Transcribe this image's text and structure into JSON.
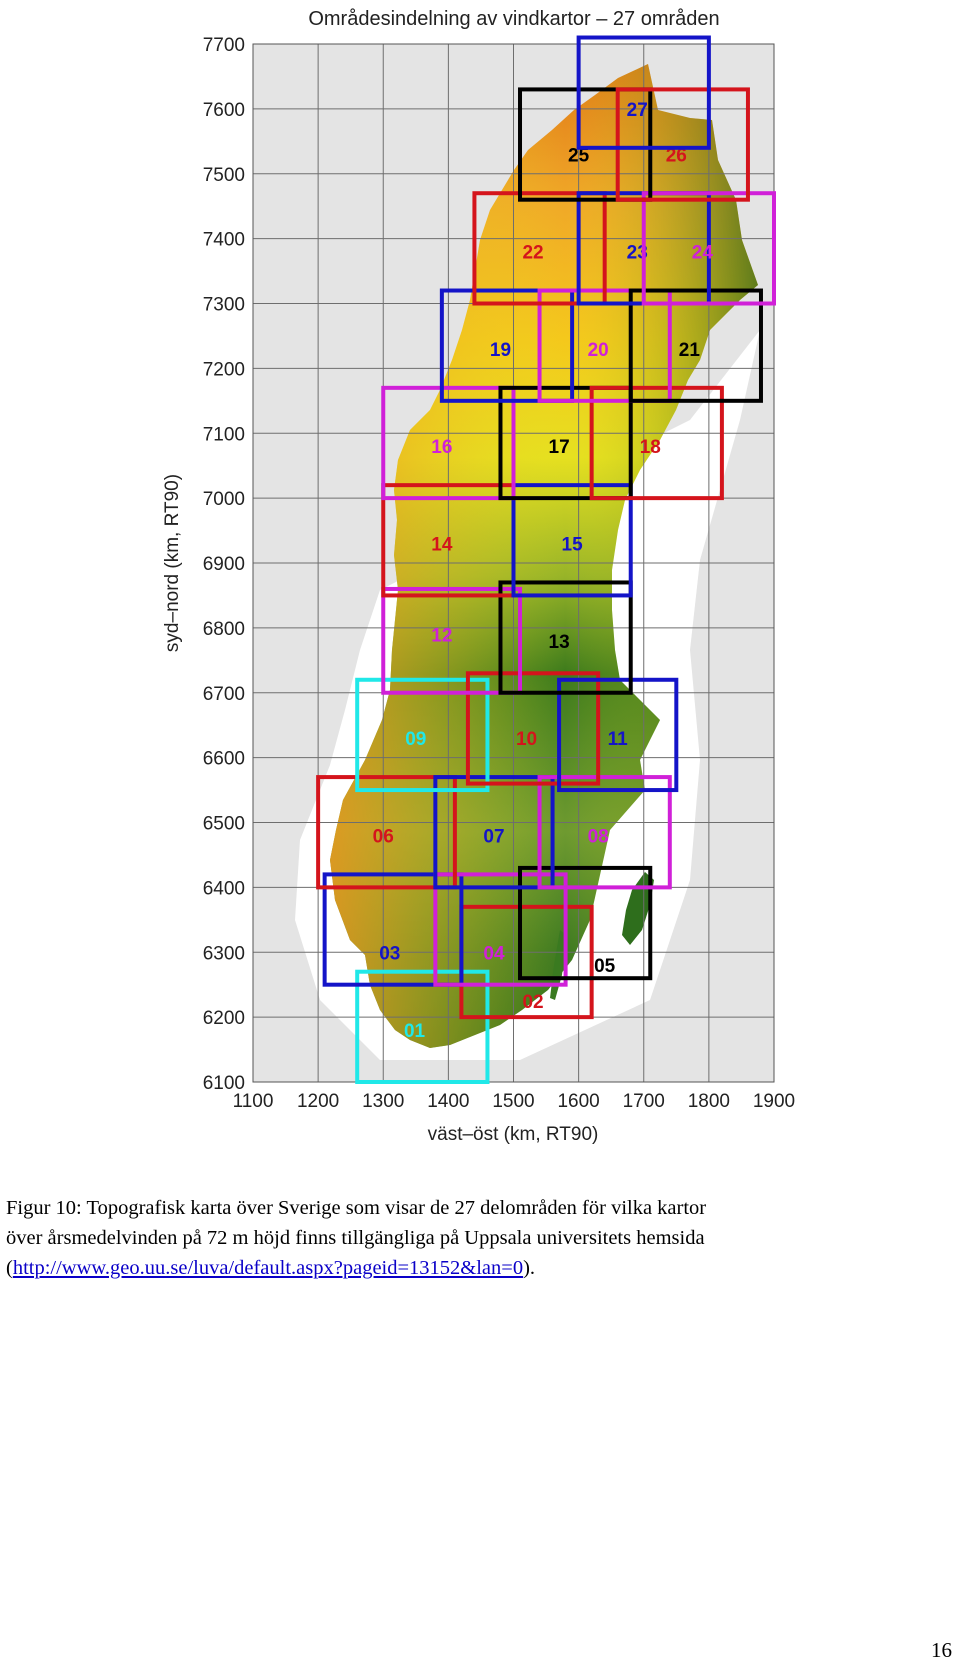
{
  "figure": {
    "title": "Områdesindelning av vindkartor – 27 områden",
    "xlabel": "väst–öst (km, RT90)",
    "ylabel": "syd–nord (km, RT90)"
  },
  "chart_data": {
    "type": "map",
    "title": "Områdesindelning av vindkartor – 27 områden",
    "xlabel": "väst–öst (km, RT90)",
    "ylabel": "syd–nord (km, RT90)",
    "xlim": [
      1100,
      1900
    ],
    "ylim": [
      6100,
      7700
    ],
    "xticks": [
      1100,
      1200,
      1300,
      1400,
      1500,
      1600,
      1700,
      1800,
      1900
    ],
    "yticks": [
      6100,
      6200,
      6300,
      6400,
      6500,
      6600,
      6700,
      6800,
      6900,
      7000,
      7100,
      7200,
      7300,
      7400,
      7500,
      7600,
      7700
    ],
    "grid": true,
    "colors": {
      "black": "#000000",
      "red": "#d4141c",
      "blue": "#1414c8",
      "magenta": "#d020d8",
      "cyan": "#20e8e8"
    },
    "regions": [
      {
        "label": "01",
        "color": "cyan",
        "x": [
          1260,
          1460
        ],
        "y": [
          6100,
          6270
        ],
        "label_at": [
          1348,
          6180
        ]
      },
      {
        "label": "02",
        "color": "red",
        "x": [
          1420,
          1620
        ],
        "y": [
          6200,
          6370
        ],
        "label_at": [
          1530,
          6225
        ]
      },
      {
        "label": "03",
        "color": "blue",
        "x": [
          1210,
          1420
        ],
        "y": [
          6250,
          6420
        ],
        "label_at": [
          1310,
          6300
        ]
      },
      {
        "label": "04",
        "color": "magenta",
        "x": [
          1380,
          1580
        ],
        "y": [
          6250,
          6420
        ],
        "label_at": [
          1470,
          6300
        ]
      },
      {
        "label": "05",
        "color": "black",
        "x": [
          1510,
          1710
        ],
        "y": [
          6260,
          6430
        ],
        "label_at": [
          1640,
          6280
        ]
      },
      {
        "label": "06",
        "color": "red",
        "x": [
          1200,
          1410
        ],
        "y": [
          6400,
          6570
        ],
        "label_at": [
          1300,
          6480
        ]
      },
      {
        "label": "07",
        "color": "blue",
        "x": [
          1380,
          1560
        ],
        "y": [
          6400,
          6570
        ],
        "label_at": [
          1470,
          6480
        ]
      },
      {
        "label": "08",
        "color": "magenta",
        "x": [
          1540,
          1740
        ],
        "y": [
          6400,
          6570
        ],
        "label_at": [
          1630,
          6480
        ]
      },
      {
        "label": "09",
        "color": "cyan",
        "x": [
          1260,
          1460
        ],
        "y": [
          6550,
          6720
        ],
        "label_at": [
          1350,
          6630
        ]
      },
      {
        "label": "10",
        "color": "red",
        "x": [
          1430,
          1630
        ],
        "y": [
          6560,
          6730
        ],
        "label_at": [
          1520,
          6630
        ]
      },
      {
        "label": "11",
        "color": "blue",
        "x": [
          1570,
          1750
        ],
        "y": [
          6550,
          6720
        ],
        "label_at": [
          1660,
          6630
        ]
      },
      {
        "label": "12",
        "color": "magenta",
        "x": [
          1300,
          1510
        ],
        "y": [
          6700,
          6860
        ],
        "label_at": [
          1390,
          6790
        ]
      },
      {
        "label": "13",
        "color": "black",
        "x": [
          1480,
          1680
        ],
        "y": [
          6700,
          6870
        ],
        "label_at": [
          1570,
          6780
        ]
      },
      {
        "label": "14",
        "color": "red",
        "x": [
          1300,
          1500
        ],
        "y": [
          6850,
          7020
        ],
        "label_at": [
          1390,
          6930
        ]
      },
      {
        "label": "15",
        "color": "blue",
        "x": [
          1500,
          1680
        ],
        "y": [
          6850,
          7020
        ],
        "label_at": [
          1590,
          6930
        ]
      },
      {
        "label": "16",
        "color": "magenta",
        "x": [
          1300,
          1500
        ],
        "y": [
          7000,
          7170
        ],
        "label_at": [
          1390,
          7080
        ]
      },
      {
        "label": "17",
        "color": "black",
        "x": [
          1480,
          1680
        ],
        "y": [
          7000,
          7170
        ],
        "label_at": [
          1570,
          7080
        ]
      },
      {
        "label": "18",
        "color": "red",
        "x": [
          1620,
          1820
        ],
        "y": [
          7000,
          7170
        ],
        "label_at": [
          1710,
          7080
        ]
      },
      {
        "label": "19",
        "color": "blue",
        "x": [
          1390,
          1590
        ],
        "y": [
          7150,
          7320
        ],
        "label_at": [
          1480,
          7230
        ]
      },
      {
        "label": "20",
        "color": "magenta",
        "x": [
          1540,
          1740
        ],
        "y": [
          7150,
          7320
        ],
        "label_at": [
          1630,
          7230
        ]
      },
      {
        "label": "21",
        "color": "black",
        "x": [
          1680,
          1880
        ],
        "y": [
          7150,
          7320
        ],
        "label_at": [
          1770,
          7230
        ]
      },
      {
        "label": "22",
        "color": "red",
        "x": [
          1440,
          1640
        ],
        "y": [
          7300,
          7470
        ],
        "label_at": [
          1530,
          7380
        ]
      },
      {
        "label": "23",
        "color": "blue",
        "x": [
          1600,
          1800
        ],
        "y": [
          7300,
          7470
        ],
        "label_at": [
          1690,
          7380
        ]
      },
      {
        "label": "24",
        "color": "magenta",
        "x": [
          1700,
          1900
        ],
        "y": [
          7300,
          7470
        ],
        "label_at": [
          1790,
          7380
        ]
      },
      {
        "label": "25",
        "color": "black",
        "x": [
          1510,
          1710
        ],
        "y": [
          7460,
          7630
        ],
        "label_at": [
          1600,
          7530
        ]
      },
      {
        "label": "26",
        "color": "red",
        "x": [
          1660,
          1860
        ],
        "y": [
          7460,
          7630
        ],
        "label_at": [
          1750,
          7530
        ]
      },
      {
        "label": "27",
        "color": "blue",
        "x": [
          1600,
          1800
        ],
        "y": [
          7540,
          7710
        ],
        "label_at": [
          1690,
          7600
        ]
      }
    ]
  },
  "caption": {
    "line1": "Figur 10: Topografisk karta över Sverige som visar de 27 delområden för vilka kartor",
    "line2": "över årsmedelvinden på 72 m höjd finns tillgängliga på Uppsala universitets hemsida",
    "open_paren": "(",
    "link": "http://www.geo.uu.se/luva/default.aspx?pageid=13152&lan=0",
    "close": ")."
  },
  "page_number": "16"
}
